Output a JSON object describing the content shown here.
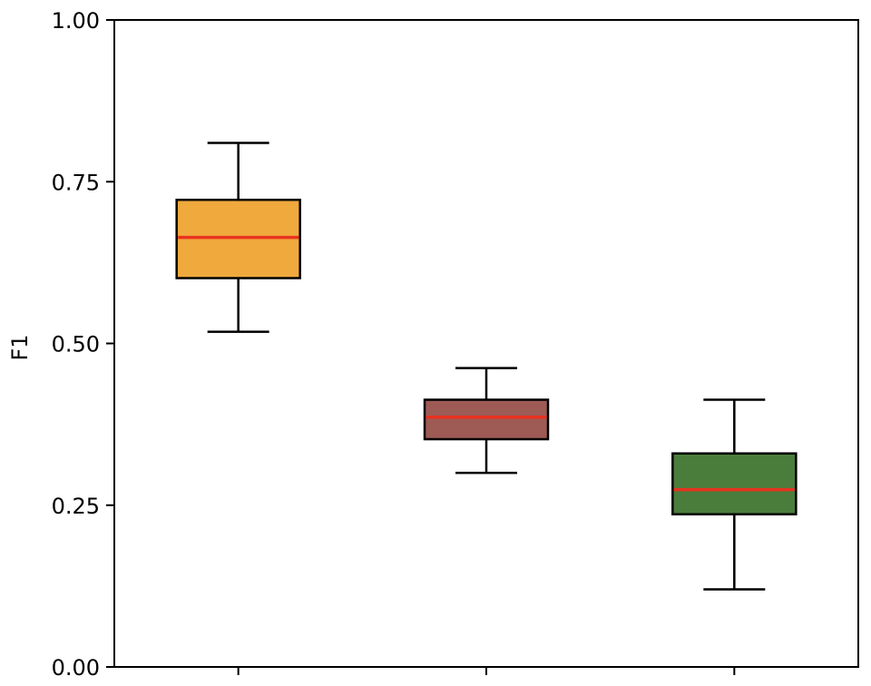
{
  "chart_data": {
    "type": "box",
    "title": "",
    "xlabel": "",
    "ylabel": "F1",
    "ylim": [
      0,
      1
    ],
    "yticks": [
      {
        "value": 0.0,
        "label": "0.00"
      },
      {
        "value": 0.25,
        "label": "0.25"
      },
      {
        "value": 0.5,
        "label": "0.50"
      },
      {
        "value": 0.75,
        "label": "0.75"
      },
      {
        "value": 1.0,
        "label": "1.00"
      }
    ],
    "grid": false,
    "legend": "none",
    "median_color": "#e8321f",
    "boxes": [
      {
        "whisker_low": 0.518,
        "q1": 0.601,
        "median": 0.664,
        "q3": 0.722,
        "whisker_high": 0.81,
        "color": "#f0a93d"
      },
      {
        "whisker_low": 0.3,
        "q1": 0.352,
        "median": 0.386,
        "q3": 0.413,
        "whisker_high": 0.462,
        "color": "#9e5b56"
      },
      {
        "whisker_low": 0.12,
        "q1": 0.236,
        "median": 0.274,
        "q3": 0.33,
        "whisker_high": 0.413,
        "color": "#4a7d3b"
      }
    ]
  }
}
